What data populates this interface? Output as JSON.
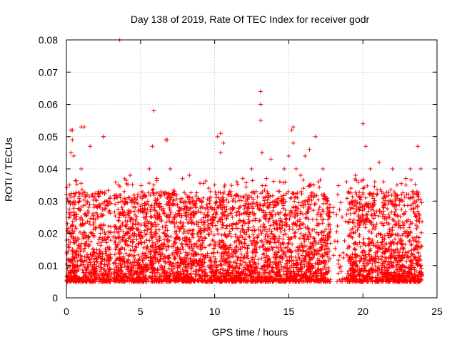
{
  "chart_data": {
    "type": "scatter",
    "title": "Day 138 of 2019, Rate Of TEC Index for receiver godr",
    "xlabel": "GPS time / hours",
    "ylabel": "ROTI / TECUs",
    "xlim": [
      0,
      25
    ],
    "ylim": [
      0,
      0.08
    ],
    "x_ticks": [
      0,
      5,
      10,
      15,
      20,
      25
    ],
    "x_tick_labels": [
      "0",
      "5",
      "10",
      "15",
      "20",
      "25"
    ],
    "y_ticks": [
      0,
      0.01,
      0.02,
      0.03,
      0.04,
      0.05,
      0.06,
      0.07,
      0.08
    ],
    "y_tick_labels": [
      "0",
      "0.01",
      "0.02",
      "0.03",
      "0.04",
      "0.05",
      "0.06",
      "0.07",
      "0.08"
    ],
    "grid": true,
    "marker": "+",
    "marker_color": "#ff0000",
    "series": [
      {
        "name": "ROTI",
        "description_of_bulk": "dense band of points roughly 0.004-0.03 TECU/min across 0-24 h",
        "x": [
          0.1,
          0.2,
          0.3,
          0.3,
          0.4,
          0.5,
          0.5,
          0.6,
          0.8,
          1.0,
          1.2,
          1.4,
          1.6,
          1.7,
          1.8,
          2.0,
          2.2,
          2.5,
          2.8,
          3.0,
          3.3,
          3.5,
          3.8,
          4.0,
          4.3,
          4.6,
          5.0,
          5.3,
          5.6,
          5.8,
          5.9,
          6.1,
          6.3,
          6.6,
          6.8,
          7.0,
          7.3,
          7.6,
          8.0,
          8.3,
          8.6,
          9.0,
          9.3,
          9.6,
          10.0,
          10.2,
          10.4,
          10.6,
          10.9,
          11.2,
          11.5,
          11.8,
          12.1,
          12.5,
          12.8,
          13.1,
          13.1,
          13.1,
          13.2,
          13.5,
          13.8,
          14.1,
          14.4,
          14.7,
          15.0,
          15.2,
          15.3,
          15.5,
          15.8,
          16.1,
          16.4,
          16.7,
          17.0,
          17.3,
          17.6,
          18.0,
          18.3,
          18.6,
          18.9,
          19.2,
          19.5,
          19.8,
          20.0,
          20.2,
          20.5,
          20.8,
          21.1,
          21.4,
          21.7,
          22.0,
          22.3,
          22.6,
          22.9,
          23.2,
          23.5,
          23.7,
          23.9,
          3.6,
          1.0,
          0.4,
          5.9,
          6.7,
          10.4,
          15.3,
          16.8,
          20.0,
          2.5
        ],
        "y": [
          0.012,
          0.035,
          0.045,
          0.052,
          0.049,
          0.044,
          0.03,
          0.022,
          0.018,
          0.04,
          0.053,
          0.03,
          0.047,
          0.02,
          0.015,
          0.012,
          0.018,
          0.05,
          0.03,
          0.022,
          0.015,
          0.035,
          0.03,
          0.025,
          0.038,
          0.02,
          0.027,
          0.032,
          0.04,
          0.047,
          0.035,
          0.037,
          0.025,
          0.018,
          0.049,
          0.04,
          0.033,
          0.028,
          0.03,
          0.038,
          0.025,
          0.03,
          0.026,
          0.034,
          0.035,
          0.05,
          0.045,
          0.048,
          0.032,
          0.028,
          0.036,
          0.026,
          0.03,
          0.04,
          0.033,
          0.064,
          0.06,
          0.055,
          0.045,
          0.037,
          0.043,
          0.03,
          0.036,
          0.04,
          0.044,
          0.052,
          0.048,
          0.04,
          0.038,
          0.044,
          0.046,
          0.035,
          0.036,
          0.04,
          0.03,
          0.028,
          0.032,
          0.025,
          0.036,
          0.034,
          0.038,
          0.028,
          0.032,
          0.047,
          0.04,
          0.036,
          0.042,
          0.036,
          0.03,
          0.04,
          0.035,
          0.032,
          0.037,
          0.04,
          0.03,
          0.047,
          0.04,
          0.08,
          0.053,
          0.052,
          0.058,
          0.049,
          0.051,
          0.053,
          0.05,
          0.054,
          0.05
        ]
      }
    ]
  }
}
